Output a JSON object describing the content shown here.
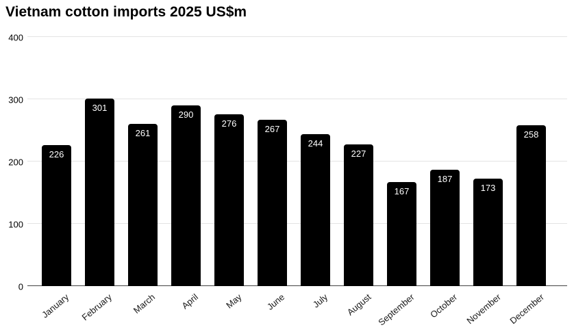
{
  "chart_data": {
    "type": "bar",
    "title": "Vietnam cotton imports 2025 US$m",
    "categories": [
      "January",
      "February",
      "March",
      "April",
      "May",
      "June",
      "July",
      "August",
      "September",
      "October",
      "November",
      "December"
    ],
    "values": [
      226,
      301,
      261,
      290,
      276,
      267,
      244,
      227,
      167,
      187,
      173,
      258
    ],
    "xlabel": "",
    "ylabel": "",
    "ylim": [
      0,
      400
    ],
    "yticks": [
      0,
      100,
      200,
      300,
      400
    ],
    "grid": "horizontal",
    "legend": "none",
    "bar_color": "#000000",
    "value_label_color": "#ffffff",
    "gridline_color": "#e3e3e3",
    "axis_line_color": "#424242"
  }
}
